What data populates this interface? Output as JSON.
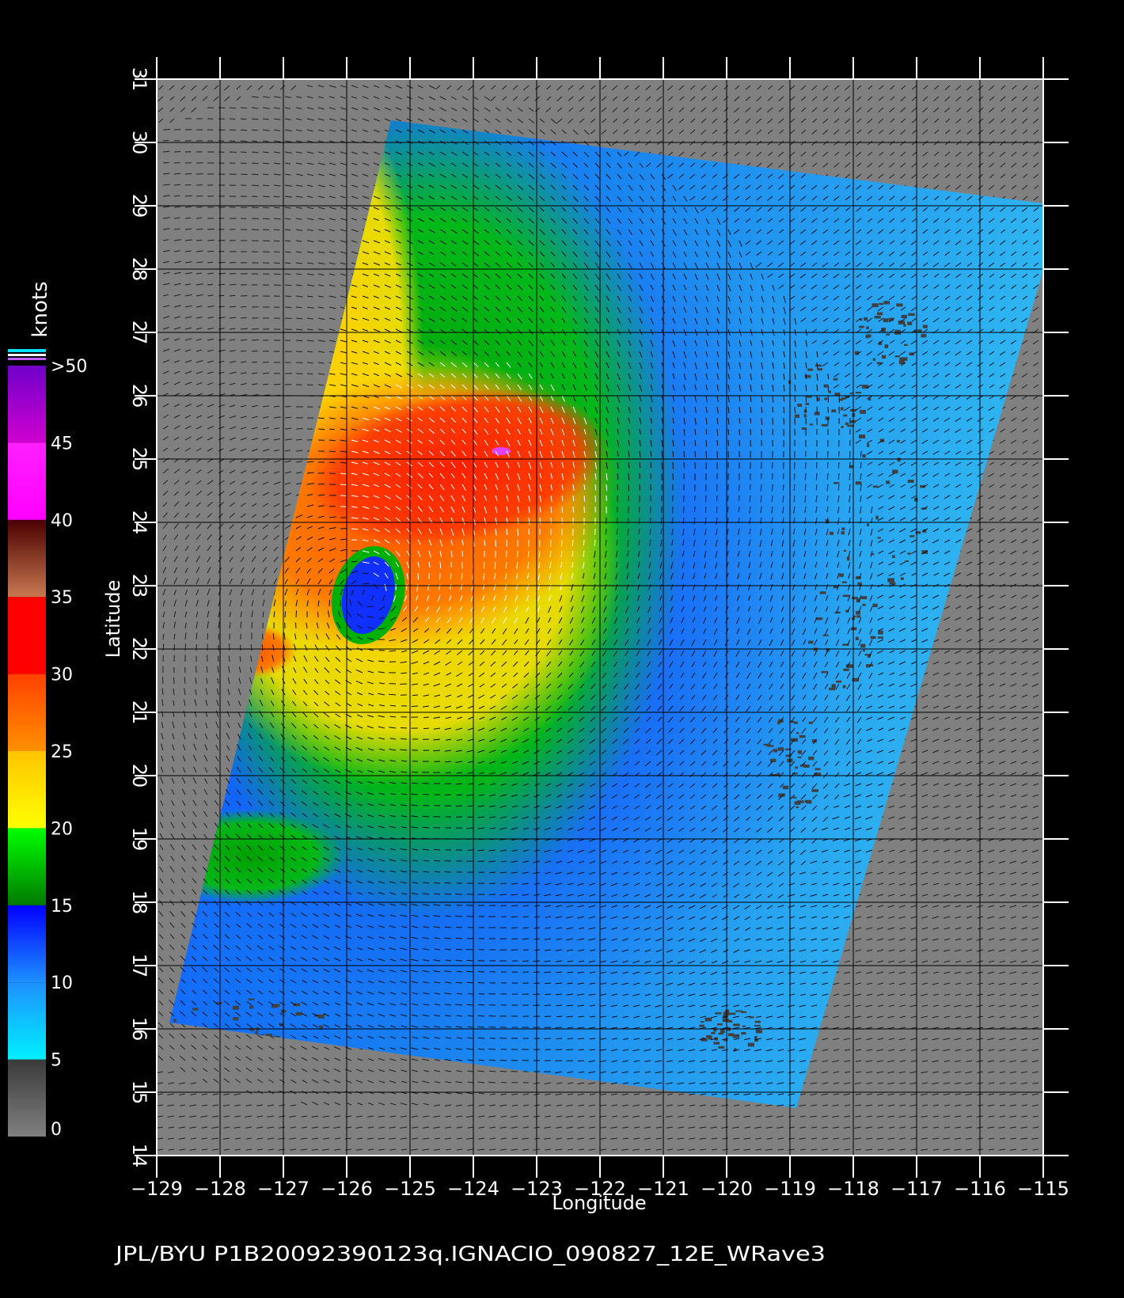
{
  "map": {
    "x_axis": {
      "label": "Longitude",
      "min": -129,
      "max": -115,
      "ticks": [
        "−129",
        "−128",
        "−127",
        "−126",
        "−125",
        "−124",
        "−123",
        "−122",
        "−121",
        "−120",
        "−119",
        "−118",
        "−117",
        "−116",
        "−115"
      ]
    },
    "y_axis": {
      "label": "Latitude",
      "min": 14,
      "max": 31,
      "ticks": [
        "14",
        "15",
        "16",
        "17",
        "18",
        "19",
        "20",
        "21",
        "22",
        "23",
        "24",
        "25",
        "26",
        "27",
        "28",
        "29",
        "30",
        "31"
      ]
    },
    "grid": true,
    "land_color": "#808080",
    "swath_corners_lonlat": [
      [
        -125.3,
        30.35
      ],
      [
        -114.7,
        29.0
      ],
      [
        -118.9,
        14.75
      ],
      [
        -128.8,
        16.1
      ]
    ],
    "storm": {
      "eye_center_lonlat": [
        -125.66,
        22.85
      ],
      "max_wind_area_lonlat": [
        -123.5,
        25.0
      ]
    },
    "footer_text": "JPL/BYU  P1B20092390123q.IGNACIO_090827_12E_WRave3"
  },
  "colorbar": {
    "title": "knots",
    "ticks": [
      "0",
      "5",
      "10",
      "15",
      "20",
      "25",
      "30",
      "35",
      "40",
      "45",
      ">50"
    ],
    "bands": [
      {
        "from": 0,
        "to": 5,
        "top": "#3a3a3a",
        "bottom": "#808080"
      },
      {
        "from": 5,
        "to": 10,
        "top": "#1e90ff",
        "bottom": "#00f0ff"
      },
      {
        "from": 10,
        "to": 15,
        "top": "#0000ff",
        "bottom": "#1e90ff"
      },
      {
        "from": 15,
        "to": 20,
        "top": "#00ff00",
        "bottom": "#007a00"
      },
      {
        "from": 20,
        "to": 25,
        "top": "#ffc400",
        "bottom": "#ffff00"
      },
      {
        "from": 25,
        "to": 30,
        "top": "#ff4000",
        "bottom": "#ff9000"
      },
      {
        "from": 30,
        "to": 35,
        "top": "#ff0000",
        "bottom": "#ff0000"
      },
      {
        "from": 35,
        "to": 40,
        "top": "#4a0000",
        "bottom": "#c87850"
      },
      {
        "from": 40,
        "to": 45,
        "top": "#ff20ff",
        "bottom": "#ff00ff"
      },
      {
        "from": 45,
        "to": 50,
        "top": "#7000c8",
        "bottom": "#d000d0"
      }
    ]
  }
}
